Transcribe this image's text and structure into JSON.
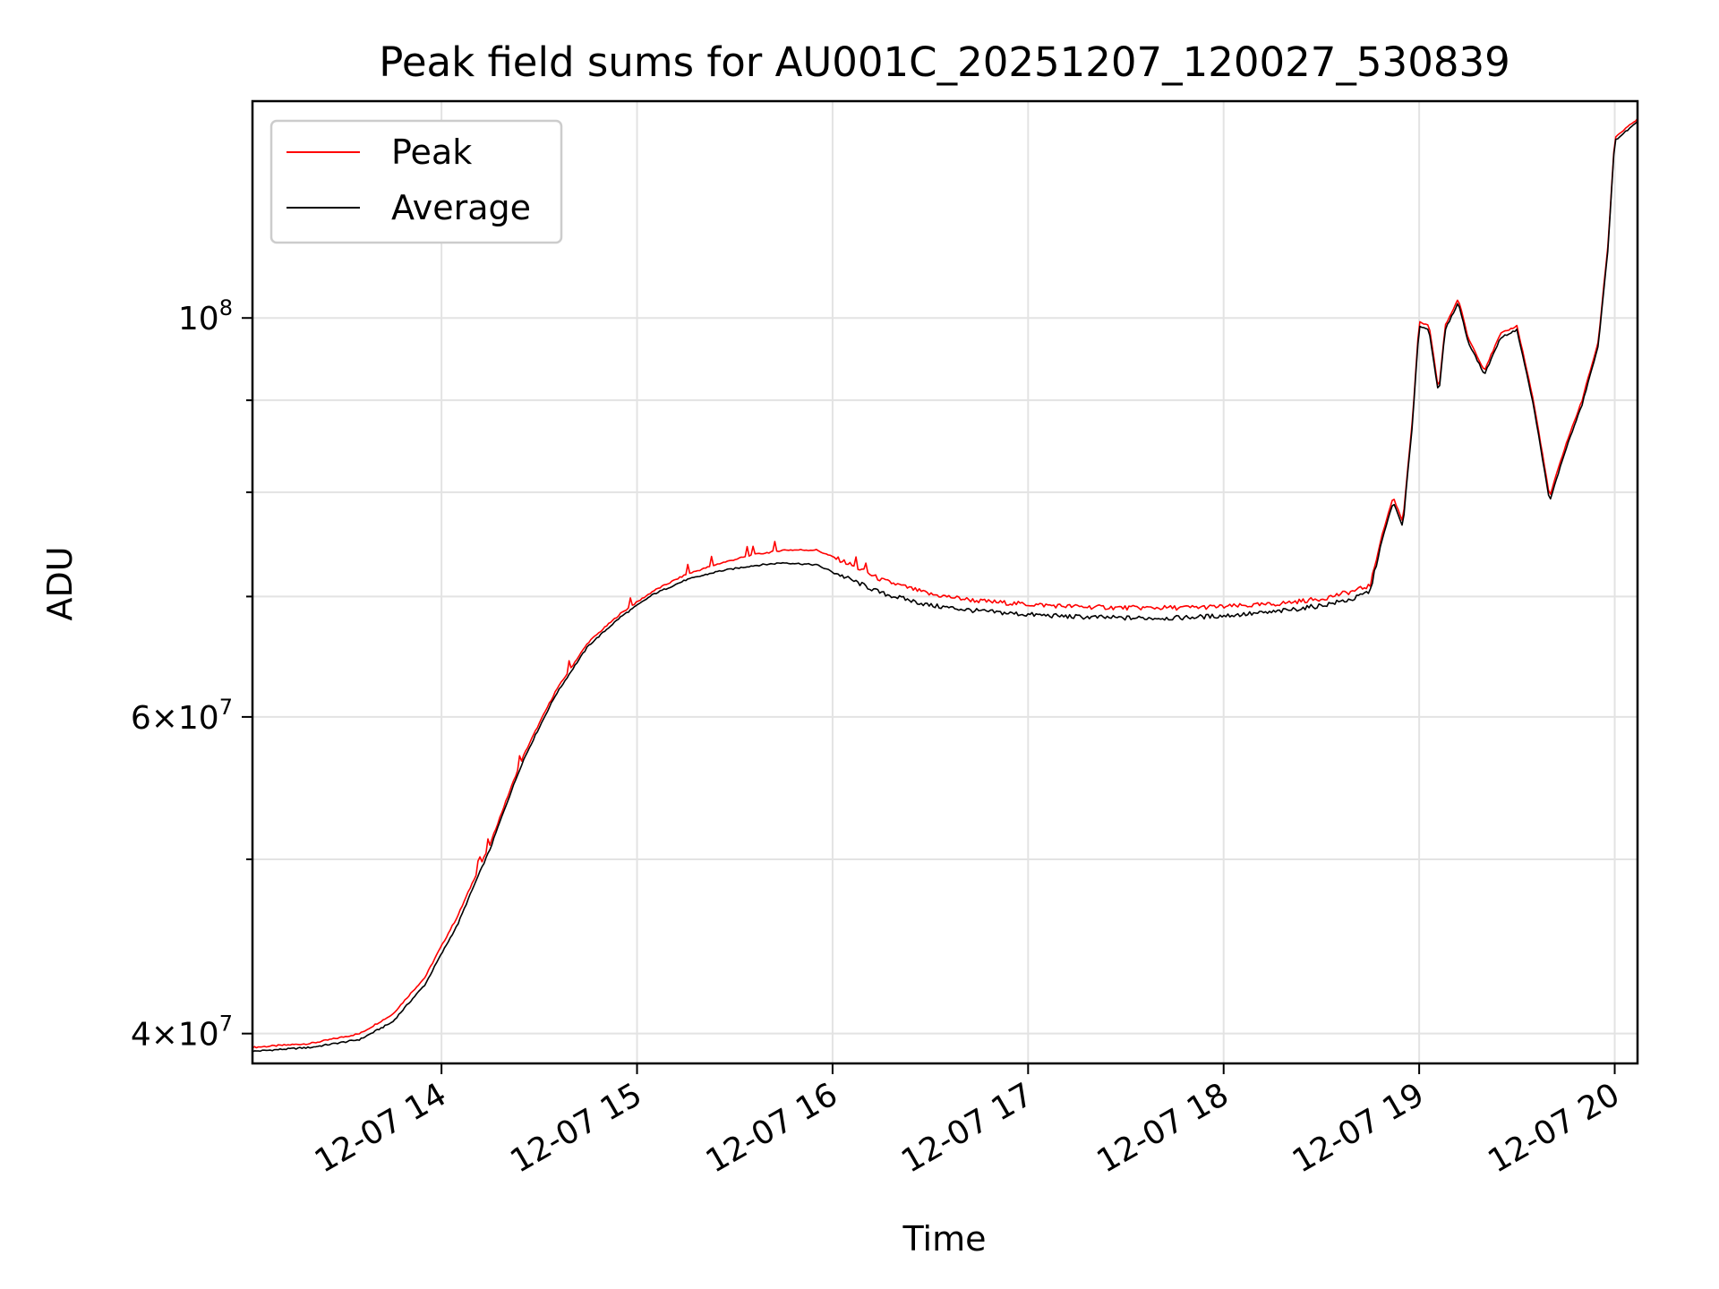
{
  "chart_data": {
    "type": "line",
    "title": "Peak field sums for AU001C_20251207_120027_530839",
    "xlabel": "Time",
    "ylabel": "ADU",
    "y_scale": "log",
    "ylim": [
      38500000,
      132000000
    ],
    "x_range_hours": [
      "2025-12-07 13:02",
      "2025-12-07 20:07"
    ],
    "x_ticks": [
      {
        "t": "2025-12-07 14:00",
        "label": "12-07 14"
      },
      {
        "t": "2025-12-07 15:00",
        "label": "12-07 15"
      },
      {
        "t": "2025-12-07 16:00",
        "label": "12-07 16"
      },
      {
        "t": "2025-12-07 17:00",
        "label": "12-07 17"
      },
      {
        "t": "2025-12-07 18:00",
        "label": "12-07 18"
      },
      {
        "t": "2025-12-07 19:00",
        "label": "12-07 19"
      },
      {
        "t": "2025-12-07 20:00",
        "label": "12-07 20"
      }
    ],
    "y_major_ticks": [
      {
        "value": 40000000,
        "mant": "4",
        "exp": "7"
      },
      {
        "value": 60000000,
        "mant": "6",
        "exp": "7"
      },
      {
        "value": 100000000,
        "mant": "",
        "exp": "8"
      }
    ],
    "y_minor_ticks": [
      50000000,
      70000000,
      80000000,
      90000000
    ],
    "grid": true,
    "legend": {
      "placement": "upper-left"
    },
    "series": [
      {
        "name": "Peak",
        "color": "#ff0000",
        "x": [
          "13:02",
          "13:20",
          "13:35",
          "13:45",
          "13:55",
          "14:05",
          "14:15",
          "14:25",
          "14:35",
          "14:45",
          "14:55",
          "15:05",
          "15:15",
          "15:25",
          "15:35",
          "15:45",
          "15:55",
          "16:05",
          "16:15",
          "16:30",
          "16:45",
          "17:00",
          "17:15",
          "17:30",
          "17:45",
          "18:00",
          "18:15",
          "18:30",
          "18:40",
          "18:45",
          "18:48",
          "18:52",
          "18:55",
          "18:58",
          "19:00",
          "19:03",
          "19:06",
          "19:08",
          "19:12",
          "19:15",
          "19:20",
          "19:25",
          "19:30",
          "19:35",
          "19:40",
          "19:45",
          "19:50",
          "19:55",
          "19:58",
          "20:00",
          "20:07"
        ],
        "y": [
          39300000,
          39500000,
          40000000,
          41000000,
          43000000,
          46500000,
          51000000,
          57000000,
          62000000,
          66000000,
          68500000,
          70500000,
          72000000,
          73000000,
          73800000,
          74300000,
          74300000,
          73000000,
          71500000,
          70200000,
          69600000,
          69300000,
          69100000,
          69000000,
          69000000,
          69100000,
          69300000,
          69800000,
          70500000,
          71000000,
          75000000,
          79500000,
          77000000,
          88000000,
          99500000,
          99000000,
          91000000,
          99000000,
          102500000,
          97500000,
          93500000,
          98000000,
          99000000,
          90000000,
          79500000,
          85000000,
          90000000,
          97000000,
          110000000,
          126000000,
          129000000
        ]
      },
      {
        "name": "Average",
        "color": "#000000",
        "x": [
          "13:02",
          "13:20",
          "13:35",
          "13:45",
          "13:55",
          "14:05",
          "14:15",
          "14:25",
          "14:35",
          "14:45",
          "14:55",
          "15:05",
          "15:15",
          "15:25",
          "15:35",
          "15:45",
          "15:55",
          "16:05",
          "16:15",
          "16:30",
          "16:45",
          "17:00",
          "17:15",
          "17:30",
          "17:45",
          "18:00",
          "18:15",
          "18:30",
          "18:40",
          "18:45",
          "18:48",
          "18:52",
          "18:55",
          "18:58",
          "19:00",
          "19:03",
          "19:06",
          "19:08",
          "19:12",
          "19:15",
          "19:20",
          "19:25",
          "19:30",
          "19:35",
          "19:40",
          "19:45",
          "19:50",
          "19:55",
          "19:58",
          "20:00",
          "20:07"
        ],
        "y": [
          39100000,
          39300000,
          39700000,
          40600000,
          42600000,
          46000000,
          50700000,
          56700000,
          61700000,
          65700000,
          68200000,
          70200000,
          71500000,
          72300000,
          72800000,
          73100000,
          72900000,
          71600000,
          70300000,
          69200000,
          68700000,
          68400000,
          68200000,
          68100000,
          68100000,
          68300000,
          68600000,
          69200000,
          69800000,
          70500000,
          74500000,
          79000000,
          76500000,
          87500000,
          99000000,
          98500000,
          90500000,
          98500000,
          102000000,
          97000000,
          93000000,
          97500000,
          98500000,
          89500000,
          79000000,
          84500000,
          89500000,
          96500000,
          109500000,
          125500000,
          128500000
        ]
      }
    ]
  }
}
